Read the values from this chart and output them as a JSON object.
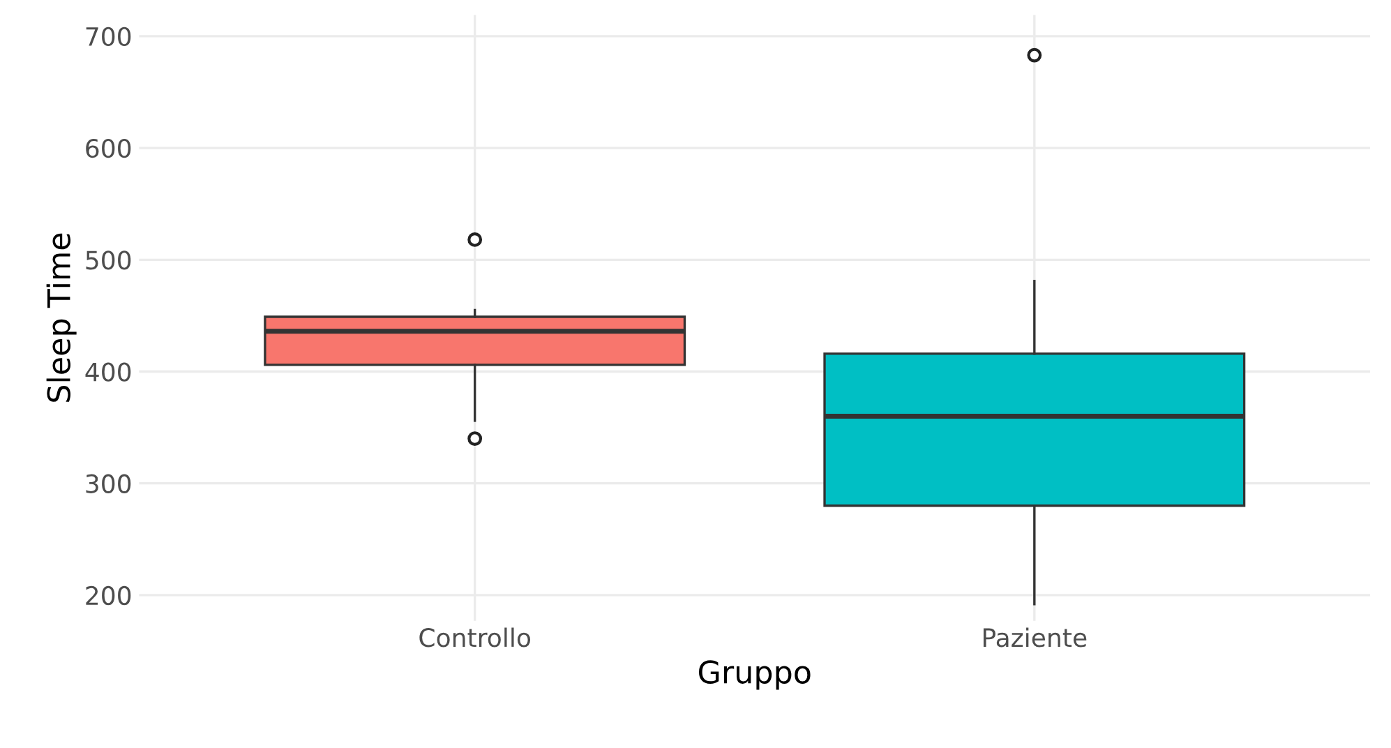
{
  "chart_data": {
    "type": "box",
    "xlabel": "Gruppo",
    "ylabel": "Sleep Time",
    "categories": [
      "Controllo",
      "Paziente"
    ],
    "colors": [
      "#f8766d",
      "#00bfc4"
    ],
    "boxes": [
      {
        "low": 356,
        "q1": 406,
        "median": 436,
        "q3": 449,
        "high": 455,
        "outliers": [
          518,
          340
        ]
      },
      {
        "low": 192,
        "q1": 280,
        "median": 360,
        "q3": 416,
        "high": 481,
        "outliers": [
          683
        ]
      }
    ],
    "ylim": [
      177,
      719
    ],
    "yticks": [
      200,
      300,
      400,
      500,
      600,
      700
    ],
    "grid": true
  }
}
